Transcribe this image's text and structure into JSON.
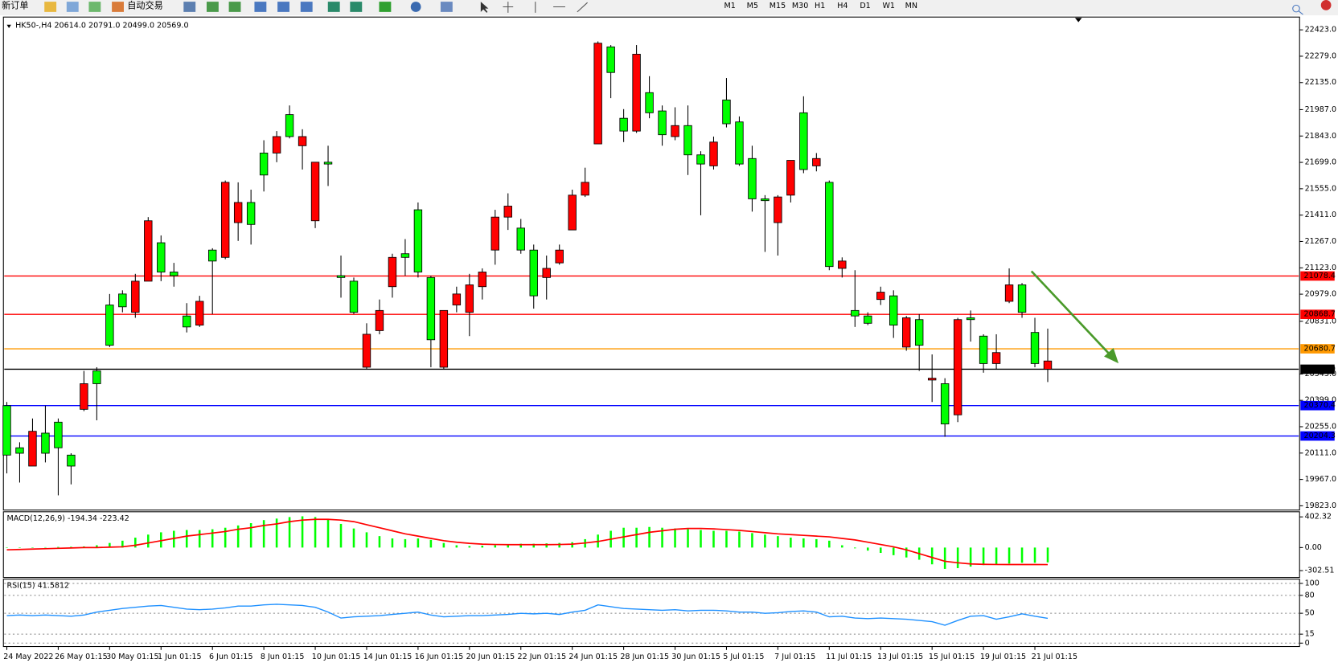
{
  "toolbar": {
    "new_order": "新订单",
    "auto_trading": "自动交易",
    "periods": [
      "M1",
      "M5",
      "M15",
      "M30",
      "H1",
      "H4",
      "D1",
      "W1",
      "MN"
    ]
  },
  "chart_data": [
    {
      "type": "candlestick",
      "title": "HK50-,H4  20614.0 20791.0 20499.0 20569.0",
      "categories": [
        "24 May 2022",
        null,
        null,
        null,
        "26 May 01:15",
        null,
        null,
        null,
        "30 May 01:15",
        null,
        null,
        null,
        "1 Jun 01:15",
        null,
        null,
        null,
        "6 Jun 01:15",
        null,
        null,
        null,
        "8 Jun 01:15",
        null,
        null,
        null,
        "10 Jun 01:15",
        null,
        null,
        null,
        "14 Jun 01:15",
        null,
        null,
        null,
        "16 Jun 01:15",
        null,
        null,
        null,
        "20 Jun 01:15",
        null,
        null,
        null,
        "22 Jun 01:15",
        null,
        null,
        null,
        "24 Jun 01:15",
        null,
        null,
        null,
        "28 Jun 01:15",
        null,
        null,
        null,
        "30 Jun 01:15",
        null,
        null,
        null,
        "5 Jul 01:15",
        null,
        null,
        null,
        "7 Jul 01:15",
        null,
        null,
        null,
        "11 Jul 01:15",
        null,
        null,
        null,
        "13 Jul 01:15",
        null,
        null,
        null,
        "15 Jul 01:15",
        null,
        null,
        null,
        "19 Jul 01:15",
        null,
        null,
        null,
        "21 Jul 01:15",
        null
      ],
      "open": [
        20100,
        20110,
        20230,
        20110,
        20140,
        20040,
        20490,
        20490,
        20700,
        20910,
        21050,
        21380,
        21100,
        21080,
        20800,
        20940,
        21160,
        21590,
        21480,
        21360,
        21630,
        21840,
        21840,
        21840,
        21700,
        21690,
        21070,
        20880,
        20760,
        20890,
        21180,
        21180,
        21100,
        20730,
        20890,
        20980,
        21030,
        21100,
        21400,
        21460,
        21220,
        20970,
        21120,
        21220,
        21520,
        21590,
        22350,
        22190,
        21870,
        22290,
        21970,
        21850,
        21900,
        21740,
        21690,
        21810,
        21910,
        21690,
        21500,
        21490,
        21510,
        21710,
        21660,
        21720,
        21130,
        21160,
        20860,
        20820,
        20990,
        20810,
        20850,
        20700,
        20520,
        20270,
        20840,
        20840,
        20600,
        20660,
        21030,
        20880,
        20600,
        20614
      ],
      "high": [
        20390,
        20170,
        20300,
        20370,
        20300,
        20110,
        20560,
        20580,
        20980,
        21000,
        21090,
        21400,
        21300,
        21150,
        20930,
        20970,
        21230,
        21600,
        21590,
        21550,
        21820,
        21870,
        22010,
        21880,
        21700,
        21790,
        21190,
        21070,
        20820,
        20950,
        21200,
        21280,
        21480,
        21080,
        20890,
        21020,
        21090,
        21120,
        21440,
        21530,
        21390,
        21250,
        21190,
        21250,
        21550,
        21670,
        22360,
        22340,
        21990,
        22340,
        22170,
        22010,
        22000,
        22010,
        21760,
        21840,
        22160,
        21950,
        21790,
        21520,
        21520,
        21710,
        22060,
        21750,
        21600,
        21180,
        21110,
        20880,
        21020,
        21000,
        20860,
        20870,
        20650,
        20520,
        20850,
        20890,
        20760,
        20760,
        21120,
        21040,
        20850,
        20791
      ],
      "low": [
        20000,
        19950,
        20040,
        20060,
        19880,
        19940,
        20340,
        20290,
        20690,
        20880,
        20850,
        21050,
        21050,
        21020,
        20770,
        20800,
        20870,
        21170,
        21270,
        21250,
        21540,
        21700,
        21830,
        21660,
        21340,
        21570,
        20960,
        20870,
        20570,
        20760,
        20960,
        21080,
        21070,
        20580,
        20570,
        20880,
        20750,
        20950,
        21140,
        21330,
        21200,
        20900,
        20950,
        21140,
        21330,
        21510,
        21800,
        22050,
        21810,
        21860,
        21940,
        21790,
        21820,
        21630,
        21410,
        21660,
        21890,
        21680,
        21430,
        21210,
        21190,
        21480,
        21640,
        21650,
        21110,
        21070,
        20800,
        20810,
        20920,
        20740,
        20670,
        20560,
        20390,
        20200,
        20280,
        20720,
        20550,
        20570,
        20930,
        20850,
        20580,
        20499
      ],
      "close": [
        20370,
        20140,
        20040,
        20220,
        20280,
        20100,
        20350,
        20560,
        20920,
        20980,
        20880,
        21050,
        21260,
        21100,
        20860,
        20810,
        21220,
        21180,
        21370,
        21480,
        21750,
        21750,
        21960,
        21790,
        21380,
        21700,
        21080,
        21050,
        20580,
        20780,
        21020,
        21200,
        21440,
        21070,
        20580,
        20920,
        20880,
        21020,
        21220,
        21400,
        21340,
        21220,
        21070,
        21150,
        21330,
        21520,
        21800,
        22330,
        21940,
        21870,
        22080,
        21980,
        21840,
        21900,
        21740,
        21680,
        22040,
        21920,
        21720,
        21500,
        21370,
        21520,
        21970,
        21680,
        21590,
        21120,
        20890,
        20860,
        20950,
        20970,
        20690,
        20840,
        20510,
        20490,
        20320,
        20850,
        20750,
        20600,
        20940,
        21030,
        20770,
        20569
      ],
      "up_color": "#00ff00",
      "down_color": "#ff0000",
      "ylim": [
        19823,
        22423
      ],
      "yticks": [
        {
          "value": 22423,
          "label": "22423.0"
        },
        {
          "value": 22279,
          "label": "22279.0"
        },
        {
          "value": 22135,
          "label": "22135.0"
        },
        {
          "value": 21987,
          "label": "21987.0"
        },
        {
          "value": 21843,
          "label": "21843.0"
        },
        {
          "value": 21699,
          "label": "21699.0"
        },
        {
          "value": 21555,
          "label": "21555.0"
        },
        {
          "value": 21411,
          "label": "21411.0"
        },
        {
          "value": 21267,
          "label": "21267.0"
        },
        {
          "value": 21123,
          "label": "21123.0"
        },
        {
          "value": 20979,
          "label": "20979.0"
        },
        {
          "value": 20831,
          "label": "20831.0"
        },
        {
          "value": 20543,
          "label": "20543.0"
        },
        {
          "value": 20399,
          "label": "20399.0"
        },
        {
          "value": 20255,
          "label": "20255.0"
        },
        {
          "value": 20111,
          "label": "20111.0"
        },
        {
          "value": 19967,
          "label": "19967.0"
        },
        {
          "value": 19823,
          "label": "19823.0"
        }
      ],
      "hlines": [
        {
          "value": 21078.4,
          "label": "21078.4",
          "color": "#ff0000"
        },
        {
          "value": 20868.7,
          "label": "20868.7",
          "color": "#ff0000"
        },
        {
          "value": 20680.7,
          "label": "20680.7",
          "color": "#ff9900"
        },
        {
          "value": 20569,
          "label": "20569.0",
          "color": "#000000"
        },
        {
          "value": 20370.4,
          "label": "20370.4",
          "color": "#0000ff"
        },
        {
          "value": 20204.3,
          "label": "20204.3",
          "color": "#0000ff"
        }
      ]
    },
    {
      "type": "macd",
      "title": "MACD(12,26,9) -194.34 -223.42",
      "values": [
        -5,
        0,
        2,
        5,
        8,
        10,
        15,
        30,
        60,
        90,
        130,
        170,
        200,
        220,
        230,
        230,
        240,
        260,
        290,
        320,
        360,
        380,
        400,
        410,
        400,
        370,
        310,
        250,
        200,
        150,
        120,
        110,
        120,
        100,
        60,
        30,
        20,
        25,
        30,
        40,
        50,
        50,
        55,
        60,
        70,
        110,
        170,
        220,
        260,
        260,
        270,
        260,
        250,
        240,
        230,
        220,
        220,
        210,
        190,
        170,
        150,
        130,
        120,
        110,
        90,
        30,
        -10,
        -40,
        -70,
        -100,
        -130,
        -160,
        -220,
        -280,
        -270,
        -250,
        -230,
        -220,
        -210,
        -200,
        -200,
        -194.34
      ],
      "signal": [
        -30,
        -25,
        -20,
        -15,
        -10,
        -5,
        0,
        0,
        5,
        10,
        30,
        60,
        90,
        120,
        150,
        170,
        190,
        210,
        240,
        260,
        290,
        310,
        340,
        360,
        370,
        370,
        360,
        340,
        300,
        260,
        220,
        180,
        150,
        120,
        90,
        70,
        55,
        45,
        40,
        38,
        38,
        38,
        38,
        40,
        45,
        60,
        80,
        110,
        140,
        170,
        200,
        220,
        240,
        250,
        250,
        245,
        235,
        225,
        210,
        195,
        180,
        170,
        160,
        150,
        140,
        120,
        100,
        70,
        40,
        10,
        -30,
        -80,
        -130,
        -180,
        -200,
        -215,
        -220,
        -222,
        -223,
        -223,
        -223,
        -223.42
      ],
      "color": "#00ff00",
      "signal_color": "#ff0000",
      "ylim": [
        -302.51,
        402.32
      ],
      "yticks": [
        402.32,
        {
          "value": 0,
          "label": "0.00"
        },
        -302.51
      ]
    },
    {
      "type": "line",
      "title": "RSI(15) 41.5812",
      "values": [
        46,
        47,
        46,
        47,
        46,
        45,
        47,
        52,
        55,
        58,
        60,
        62,
        63,
        60,
        57,
        56,
        57,
        59,
        62,
        62,
        64,
        65,
        64,
        63,
        60,
        52,
        42,
        44,
        45,
        46,
        48,
        50,
        52,
        47,
        44,
        45,
        46,
        46,
        47,
        48,
        50,
        49,
        50,
        48,
        52,
        55,
        64,
        61,
        58,
        57,
        56,
        55,
        56,
        54,
        55,
        55,
        54,
        52,
        52,
        50,
        51,
        53,
        54,
        52,
        44,
        45,
        42,
        41,
        42,
        41,
        40,
        38,
        36,
        30,
        38,
        45,
        46,
        40,
        44,
        49,
        45,
        41.5812
      ],
      "color": "#1e90ff",
      "ylim": [
        0,
        100
      ],
      "yticks": [
        100,
        80,
        50,
        15,
        0
      ],
      "grid": true
    }
  ]
}
